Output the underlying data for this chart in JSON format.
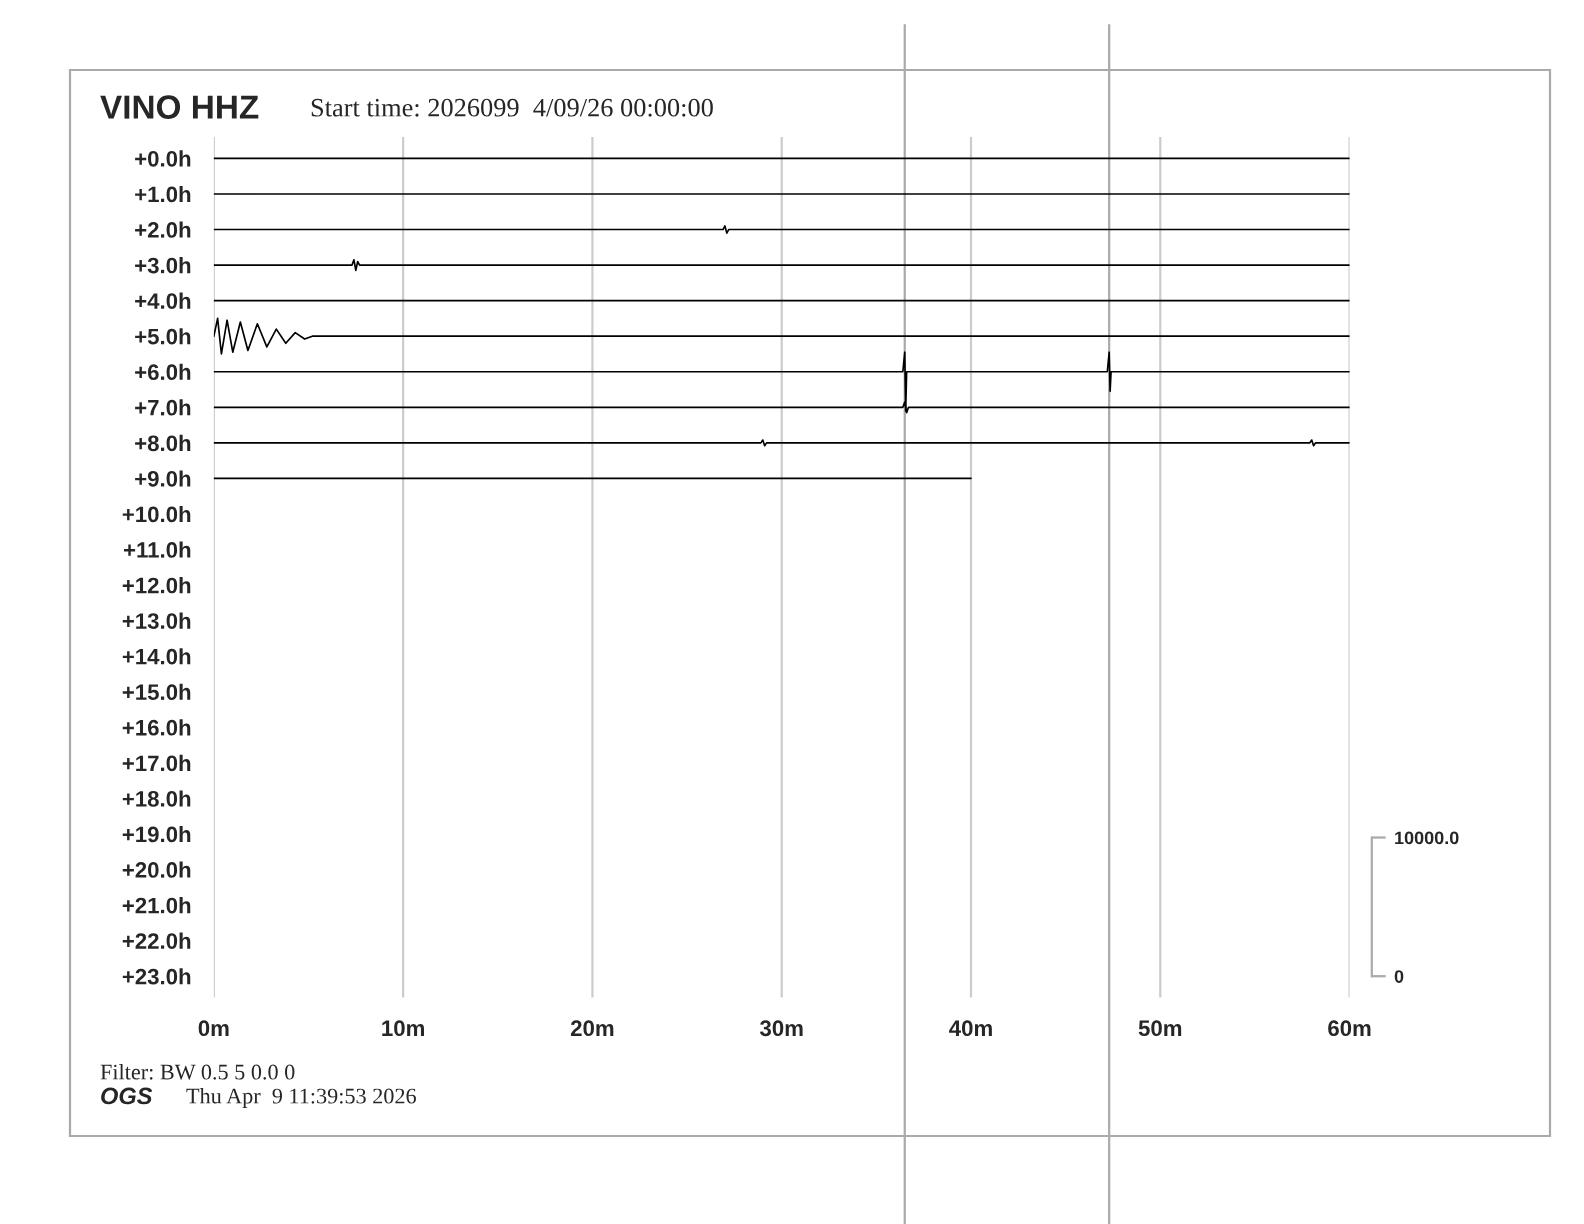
{
  "chart_data": {
    "type": "line",
    "title": "VINO HHZ",
    "subtitle": "Start time: 2026099  4/09/26 00:00:00",
    "annotations": [
      "Filter: BW 0.5 5 0.0 0",
      "OGS",
      "Thu Apr  9 11:39:53 2026"
    ],
    "xlim": [
      0,
      60
    ],
    "xticks": [
      {
        "value": 0,
        "label": "0m"
      },
      {
        "value": 10,
        "label": "10m"
      },
      {
        "value": 20,
        "label": "20m"
      },
      {
        "value": 30,
        "label": "30m"
      },
      {
        "value": 40,
        "label": "40m"
      },
      {
        "value": 50,
        "label": "50m"
      },
      {
        "value": 60,
        "label": "60m"
      }
    ],
    "ylim": [
      23.6,
      -0.6
    ],
    "yticks": [
      {
        "value": 0,
        "label": "+0.0h"
      },
      {
        "value": 1,
        "label": "+1.0h"
      },
      {
        "value": 2,
        "label": "+2.0h"
      },
      {
        "value": 3,
        "label": "+3.0h"
      },
      {
        "value": 4,
        "label": "+4.0h"
      },
      {
        "value": 5,
        "label": "+5.0h"
      },
      {
        "value": 6,
        "label": "+6.0h"
      },
      {
        "value": 7,
        "label": "+7.0h"
      },
      {
        "value": 8,
        "label": "+8.0h"
      },
      {
        "value": 9,
        "label": "+9.0h"
      },
      {
        "value": 10,
        "label": "+10.0h"
      },
      {
        "value": 11,
        "label": "+11.0h"
      },
      {
        "value": 12,
        "label": "+12.0h"
      },
      {
        "value": 13,
        "label": "+13.0h"
      },
      {
        "value": 14,
        "label": "+14.0h"
      },
      {
        "value": 15,
        "label": "+15.0h"
      },
      {
        "value": 16,
        "label": "+16.0h"
      },
      {
        "value": 17,
        "label": "+17.0h"
      },
      {
        "value": 18,
        "label": "+18.0h"
      },
      {
        "value": 19,
        "label": "+19.0h"
      },
      {
        "value": 20,
        "label": "+20.0h"
      },
      {
        "value": 21,
        "label": "+21.0h"
      },
      {
        "value": 22,
        "label": "+22.0h"
      },
      {
        "value": 23,
        "label": "+23.0h"
      }
    ],
    "y2lim": [
      -1540,
      60510
    ],
    "y2ticks": [
      0,
      {
        "value": 10000,
        "label": "10000.0"
      }
    ],
    "grid": "x",
    "ref_lines": [
      {
        "axis": "x",
        "value": 36.5,
        "color": "#aaaaaa"
      },
      {
        "axis": "x",
        "value": 47.3,
        "color": "#aaaaaa"
      }
    ],
    "series": [
      {
        "color": "#000000",
        "x": [
          0,
          15,
          30,
          45,
          60
        ],
        "values": [
          0,
          0,
          0,
          0,
          0
        ]
      },
      {
        "color": "#000000",
        "x": [
          0,
          15,
          30,
          45,
          60
        ],
        "values": [
          1,
          1,
          1,
          1,
          1
        ]
      },
      {
        "color": "#000000",
        "x": [
          0,
          26.9,
          27.0,
          27.1,
          27.2,
          60
        ],
        "values": [
          2,
          2,
          1.9,
          2.1,
          2,
          2
        ]
      },
      {
        "color": "#000000",
        "x": [
          0,
          7.3,
          7.4,
          7.5,
          7.6,
          7.7,
          60
        ],
        "values": [
          3,
          3,
          2.85,
          3.15,
          2.9,
          3,
          3
        ]
      },
      {
        "color": "#000000",
        "x": [
          0,
          30,
          60
        ],
        "values": [
          4,
          4,
          4
        ]
      },
      {
        "color": "#000000",
        "x": [
          0,
          0.2,
          0.4,
          0.7,
          1.0,
          1.4,
          1.8,
          2.3,
          2.8,
          3.3,
          3.8,
          4.3,
          4.8,
          5.2,
          30,
          60
        ],
        "values": [
          5,
          4.5,
          5.5,
          4.55,
          5.45,
          4.6,
          5.4,
          4.65,
          5.3,
          4.8,
          5.2,
          4.9,
          5.08,
          5,
          5,
          5
        ]
      },
      {
        "color": "#000000",
        "x": [
          0,
          36.4,
          36.5,
          36.55,
          36.6,
          47.2,
          47.3,
          47.35,
          47.4,
          60
        ],
        "values": [
          6,
          6,
          5.45,
          7.1,
          6,
          6,
          5.45,
          6.55,
          6,
          6
        ]
      },
      {
        "color": "#000000",
        "x": [
          0,
          36.4,
          36.5,
          36.6,
          36.7,
          60
        ],
        "values": [
          7,
          7,
          6.85,
          7.15,
          7,
          7
        ]
      },
      {
        "color": "#000000",
        "x": [
          0,
          28.9,
          29.0,
          29.1,
          29.2,
          57.9,
          58.0,
          58.1,
          58.2,
          60
        ],
        "values": [
          8,
          8,
          7.92,
          8.08,
          8,
          8,
          7.92,
          8.08,
          8,
          8
        ]
      },
      {
        "color": "#000000",
        "x": [
          0,
          20,
          40
        ],
        "values": [
          9,
          9,
          9
        ]
      }
    ]
  }
}
